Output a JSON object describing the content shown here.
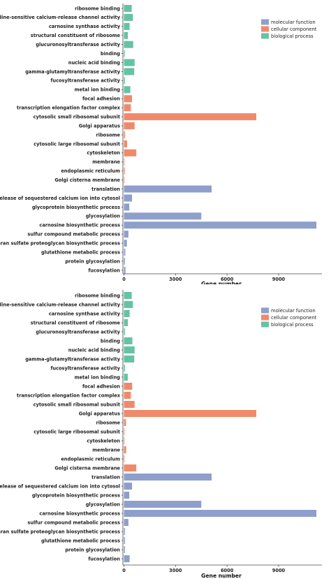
{
  "colors": {
    "molecular_function": "#8E9FCB",
    "cellular_component": "#F0896A",
    "biological_process": "#66C2A5"
  },
  "chart_data": [
    {
      "type": "bar",
      "orientation": "horizontal",
      "xlabel": "Gene number",
      "ylabel": "",
      "xlim": [
        0,
        11500
      ],
      "xticks": [
        "0",
        "3000",
        "6000",
        "9000"
      ],
      "xtick_values": [
        0,
        3000,
        6000,
        9000
      ],
      "grid": false,
      "legend_position": "top-right",
      "legend": [
        {
          "name": "molecular function",
          "color_key": "molecular_function"
        },
        {
          "name": "cellular component",
          "color_key": "cellular_component"
        },
        {
          "name": "biological process",
          "color_key": "biological_process"
        }
      ],
      "categories": [
        "ribosome binding",
        "ryanodine-sensitive calcium-release channel activity",
        "carnosine synthase activity",
        "structural constituent of ribosome",
        "glucuronosyltransferase activity",
        "binding",
        "nucleic acid binding",
        "gamma-glutamyltransferase activity",
        "fucosyltransferase activity",
        "metal ion binding",
        "focal adhesion",
        "transcription elongation factor complex",
        "cytosolic small ribosomal subunit",
        "Golgi apparatus",
        "ribosome",
        "cytosolic large ribosomal subunit",
        "cytoskeleton",
        "membrane",
        "endoplasmic reticulum",
        "Golgi cisterna membrane",
        "translation",
        "release of sequestered calcium ion into cytosol",
        "glycoprotein biosynthetic process",
        "glycosylation",
        "carnosine biosynthetic process",
        "sulfur compound metabolic process",
        "heparan sulfate proteoglycan biosynthetic process",
        "glutathione metabolic process",
        "protein glycosylation",
        "fucosylation"
      ],
      "groups": [
        "biological_process",
        "biological_process",
        "biological_process",
        "biological_process",
        "biological_process",
        "biological_process",
        "biological_process",
        "biological_process",
        "biological_process",
        "biological_process",
        "cellular_component",
        "cellular_component",
        "cellular_component",
        "cellular_component",
        "cellular_component",
        "cellular_component",
        "cellular_component",
        "cellular_component",
        "cellular_component",
        "cellular_component",
        "molecular_function",
        "molecular_function",
        "molecular_function",
        "molecular_function",
        "molecular_function",
        "molecular_function",
        "molecular_function",
        "molecular_function",
        "molecular_function",
        "molecular_function"
      ],
      "values": [
        450,
        520,
        330,
        230,
        540,
        50,
        620,
        600,
        60,
        370,
        470,
        400,
        7700,
        620,
        60,
        180,
        720,
        30,
        50,
        30,
        5100,
        470,
        310,
        4500,
        11200,
        260,
        170,
        80,
        60,
        90
      ]
    },
    {
      "type": "bar",
      "orientation": "horizontal",
      "xlabel": "Gene number",
      "ylabel": "",
      "xlim": [
        0,
        11500
      ],
      "xticks": [
        "0",
        "3000",
        "6000",
        "9000"
      ],
      "xtick_values": [
        0,
        3000,
        6000,
        9000
      ],
      "grid": false,
      "legend_position": "top-right",
      "legend": [
        {
          "name": "molecular function",
          "color_key": "molecular_function"
        },
        {
          "name": "cellular component",
          "color_key": "cellular_component"
        },
        {
          "name": "biological process",
          "color_key": "biological_process"
        }
      ],
      "categories": [
        "ribosome binding",
        "ryanodine-sensitive calcium-release channel activity",
        "carnosine synthase activity",
        "structural constituent of ribosome",
        "glucuronosyltransferase activity",
        "binding",
        "nucleic acid binding",
        "gamma-glutamyltransferase activity",
        "fucosyltransferase activity",
        "metal ion binding",
        "focal adhesion",
        "transcription elongation factor complex",
        "cytosolic small ribosomal subunit",
        "Golgi apparatus",
        "ribosome",
        "cytosolic large ribosomal subunit",
        "cytoskeleton",
        "membrane",
        "endoplasmic reticulum",
        "Golgi cisterna membrane",
        "translation",
        "release of sequestered calcium ion into cytosol",
        "glycoprotein biosynthetic process",
        "glycosylation",
        "carnosine biosynthetic process",
        "sulfur compound metabolic process",
        "heparan sulfate proteoglycan biosynthetic process",
        "glutathione metabolic process",
        "protein glycosylation",
        "fucosylation"
      ],
      "groups": [
        "biological_process",
        "biological_process",
        "biological_process",
        "biological_process",
        "biological_process",
        "biological_process",
        "biological_process",
        "biological_process",
        "biological_process",
        "biological_process",
        "cellular_component",
        "cellular_component",
        "cellular_component",
        "cellular_component",
        "cellular_component",
        "cellular_component",
        "cellular_component",
        "cellular_component",
        "cellular_component",
        "cellular_component",
        "molecular_function",
        "molecular_function",
        "molecular_function",
        "molecular_function",
        "molecular_function",
        "molecular_function",
        "molecular_function",
        "molecular_function",
        "molecular_function",
        "molecular_function"
      ],
      "values": [
        450,
        520,
        330,
        230,
        60,
        490,
        620,
        600,
        60,
        220,
        480,
        400,
        620,
        7700,
        120,
        30,
        20,
        130,
        20,
        720,
        5100,
        470,
        310,
        4500,
        11200,
        260,
        60,
        60,
        60,
        330
      ]
    }
  ]
}
